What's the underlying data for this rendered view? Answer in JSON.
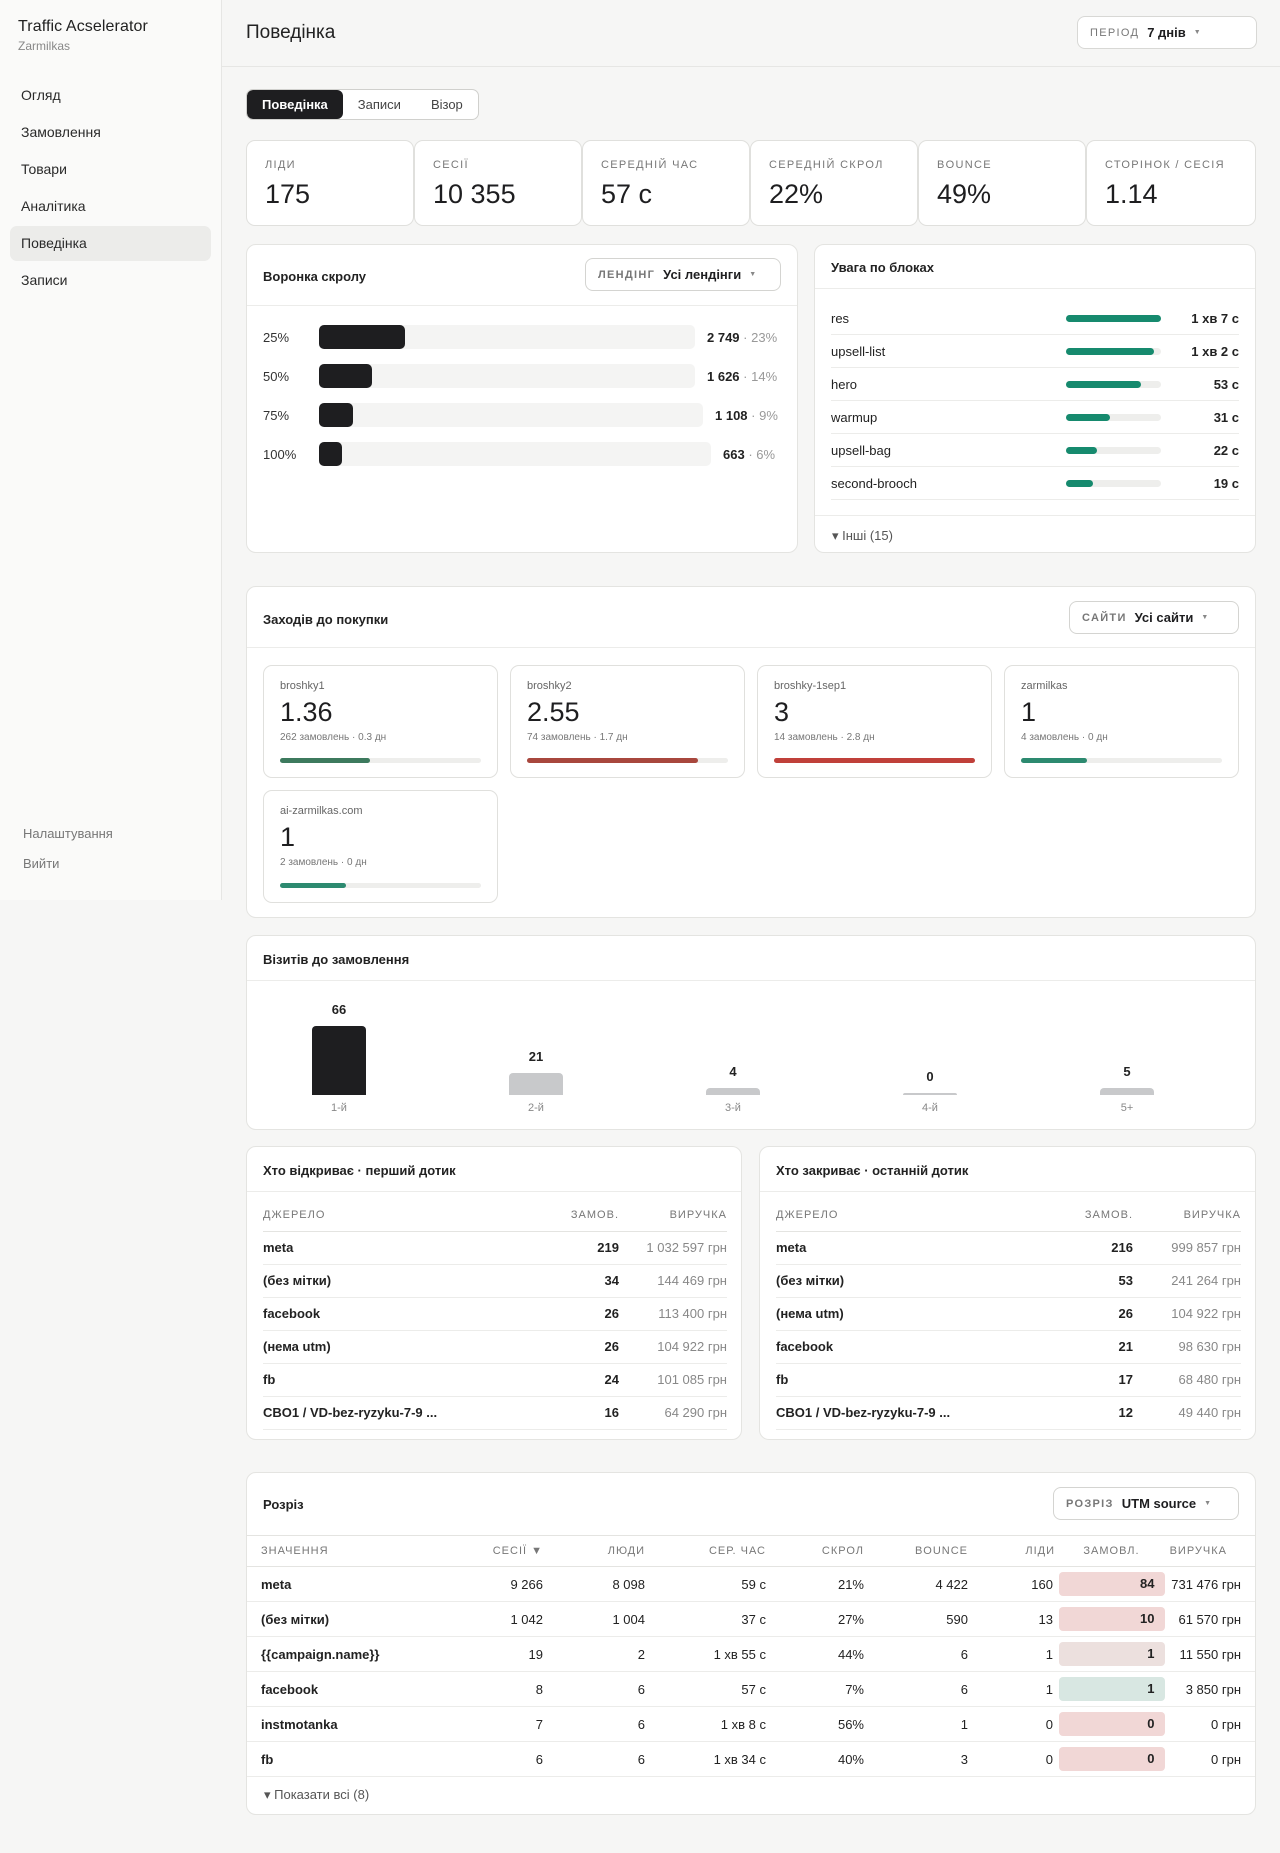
{
  "app": {
    "title": "Traffic Acselerator",
    "subtitle": "Zarmilkas"
  },
  "nav": {
    "items": [
      "Огляд",
      "Замовлення",
      "Товари",
      "Аналітика",
      "Поведінка",
      "Записи"
    ],
    "bottom": [
      "Налаштування",
      "Вийти"
    ]
  },
  "header": {
    "title": "Поведінка",
    "period_label": "ПЕРІОД",
    "period_value": "7 днів"
  },
  "tabs": [
    "Поведінка",
    "Записи",
    "Візор"
  ],
  "kpis": [
    {
      "label": "ЛІДИ",
      "value": "175"
    },
    {
      "label": "СЕСІЇ",
      "value": "10 355"
    },
    {
      "label": "СЕРЕДНІЙ ЧАС",
      "value": "57 с"
    },
    {
      "label": "СЕРЕДНІЙ СКРОЛ",
      "value": "22%"
    },
    {
      "label": "BOUNCE",
      "value": "49%"
    },
    {
      "label": "СТОРІНОК / СЕСІЯ",
      "value": "1.14"
    }
  ],
  "funnel": {
    "title": "Воронка скролу",
    "filter_label": "ЛЕНДІНГ",
    "filter_value": "Усі лендінги",
    "rows": [
      {
        "pct": "25%",
        "value": "2 749",
        "share": "· 23%",
        "fill": 0.23
      },
      {
        "pct": "50%",
        "value": "1 626",
        "share": "· 14%",
        "fill": 0.14
      },
      {
        "pct": "75%",
        "value": "1 108",
        "share": "· 9%",
        "fill": 0.09
      },
      {
        "pct": "100%",
        "value": "663",
        "share": "· 6%",
        "fill": 0.06
      }
    ]
  },
  "attention": {
    "title": "Увага по блоках",
    "rows": [
      {
        "name": "res",
        "value": "1 хв 7 с",
        "fill": 1.0
      },
      {
        "name": "upsell-list",
        "value": "1 хв 2 с",
        "fill": 0.93
      },
      {
        "name": "hero",
        "value": "53 с",
        "fill": 0.79
      },
      {
        "name": "warmup",
        "value": "31 с",
        "fill": 0.46
      },
      {
        "name": "upsell-bag",
        "value": "22 с",
        "fill": 0.33
      },
      {
        "name": "second-brooch",
        "value": "19 с",
        "fill": 0.28
      }
    ],
    "more": "▾ Інші (15)"
  },
  "purchase": {
    "title": "Заходів до покупки",
    "filter_label": "САЙТИ",
    "filter_value": "Усі сайти",
    "sites": [
      {
        "name": "broshky1",
        "value": "1.36",
        "sub": "262 замовлень · 0.3 дн",
        "fill": 0.45,
        "color": "#3d7a5e"
      },
      {
        "name": "broshky2",
        "value": "2.55",
        "sub": "74 замовлень · 1.7 дн",
        "fill": 0.85,
        "color": "#a8473d"
      },
      {
        "name": "broshky-1sep1",
        "value": "3",
        "sub": "14 замовлень · 2.8 дн",
        "fill": 1.0,
        "color": "#c0403a"
      },
      {
        "name": "zarmilkas",
        "value": "1",
        "sub": "4 замовлень · 0 дн",
        "fill": 0.33,
        "color": "#2d8a70"
      },
      {
        "name": "ai-zarmilkas.com",
        "value": "1",
        "sub": "2 замовлень · 0 дн",
        "fill": 0.33,
        "color": "#2d8a70"
      }
    ]
  },
  "visits": {
    "title": "Візитів до замовлення"
  },
  "chart_data": {
    "type": "bar",
    "categories": [
      "1-й",
      "2-й",
      "3-й",
      "4-й",
      "5+"
    ],
    "values": [
      66,
      21,
      4,
      0,
      5
    ],
    "title": "Візитів до замовлення",
    "colors": [
      "#1e1e20",
      "#c8c9cb",
      "#c8c9cb",
      "#c8c9cb",
      "#c8c9cb"
    ]
  },
  "first_touch": {
    "title": "Хто відкриває · перший дотик",
    "headers": [
      "ДЖЕРЕЛО",
      "ЗАМОВ.",
      "ВИРУЧКА"
    ],
    "rows": [
      [
        "meta",
        "219",
        "1 032 597 грн"
      ],
      [
        "(без мітки)",
        "34",
        "144 469 грн"
      ],
      [
        "facebook",
        "26",
        "113 400 грн"
      ],
      [
        "(нема utm)",
        "26",
        "104 922 грн"
      ],
      [
        "fb",
        "24",
        "101 085 грн"
      ],
      [
        "CBO1 / VD-bez-ryzyku-7-9 ...",
        "16",
        "64 290 грн"
      ]
    ]
  },
  "last_touch": {
    "title": "Хто закриває · останній дотик",
    "headers": [
      "ДЖЕРЕЛО",
      "ЗАМОВ.",
      "ВИРУЧКА"
    ],
    "rows": [
      [
        "meta",
        "216",
        "999 857 грн"
      ],
      [
        "(без мітки)",
        "53",
        "241 264 грн"
      ],
      [
        "(нема utm)",
        "26",
        "104 922 грн"
      ],
      [
        "facebook",
        "21",
        "98 630 грн"
      ],
      [
        "fb",
        "17",
        "68 480 грн"
      ],
      [
        "CBO1 / VD-bez-ryzyku-7-9 ...",
        "12",
        "49 440 грн"
      ]
    ]
  },
  "breakdown": {
    "title": "Розріз",
    "filter_label": "РОЗРІЗ",
    "filter_value": "UTM source",
    "headers": [
      "ЗНАЧЕННЯ",
      "СЕСІЇ ▼",
      "ЛЮДИ",
      "СЕР. ЧАС",
      "СКРОЛ",
      "BOUNCE",
      "ЛІДИ",
      "ЗАМОВЛ.",
      "ВИРУЧКА"
    ],
    "rows": [
      [
        "meta",
        "9 266",
        "8 098",
        "59 с",
        "21%",
        "4 422",
        "160",
        "84",
        "731 476 грн"
      ],
      [
        "(без мітки)",
        "1 042",
        "1 004",
        "37 с",
        "27%",
        "590",
        "13",
        "10",
        "61 570 грн"
      ],
      [
        "{{campaign.name}}",
        "19",
        "2",
        "1 хв 55 с",
        "44%",
        "6",
        "1",
        "1",
        "11 550 грн"
      ],
      [
        "facebook",
        "8",
        "6",
        "57 с",
        "7%",
        "6",
        "1",
        "1",
        "3 850 грн"
      ],
      [
        "instmotanka",
        "7",
        "6",
        "1 хв 8 с",
        "56%",
        "1",
        "0",
        "0",
        "0 грн"
      ],
      [
        "fb",
        "6",
        "6",
        "1 хв 34 с",
        "40%",
        "3",
        "0",
        "0",
        "0 грн"
      ]
    ],
    "pill_colors": [
      "#f1d7d6",
      "#f1d7d6",
      "#ece0de",
      "#d8e7e2",
      "#f1d7d6",
      "#f1d7d6"
    ],
    "more": "▾ Показати всі (8)"
  }
}
